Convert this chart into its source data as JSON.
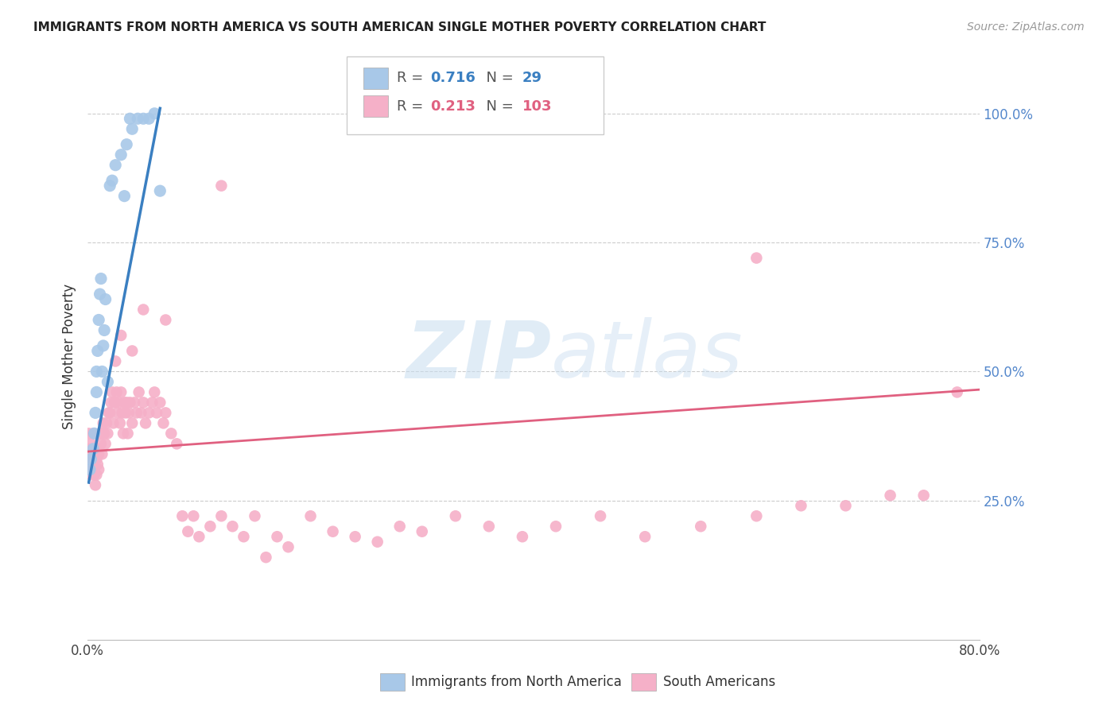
{
  "title": "IMMIGRANTS FROM NORTH AMERICA VS SOUTH AMERICAN SINGLE MOTHER POVERTY CORRELATION CHART",
  "source": "Source: ZipAtlas.com",
  "ylabel": "Single Mother Poverty",
  "legend_blue_R": "0.716",
  "legend_blue_N": "29",
  "legend_pink_R": "0.213",
  "legend_pink_N": "103",
  "legend_blue_label": "Immigrants from North America",
  "legend_pink_label": "South Americans",
  "watermark_zip": "ZIP",
  "watermark_atlas": "atlas",
  "blue_color": "#a8c8e8",
  "pink_color": "#f5b0c8",
  "blue_line_color": "#3a7fc1",
  "pink_line_color": "#e06080",
  "xlim": [
    0.0,
    0.8
  ],
  "ylim": [
    -0.02,
    1.08
  ],
  "blue_x": [
    0.002,
    0.003,
    0.005,
    0.006,
    0.007,
    0.008,
    0.008,
    0.009,
    0.01,
    0.011,
    0.012,
    0.013,
    0.014,
    0.015,
    0.016,
    0.018,
    0.02,
    0.022,
    0.025,
    0.03,
    0.033,
    0.035,
    0.038,
    0.04,
    0.045,
    0.05,
    0.055,
    0.06,
    0.065
  ],
  "blue_y": [
    0.31,
    0.33,
    0.35,
    0.38,
    0.42,
    0.46,
    0.5,
    0.54,
    0.6,
    0.65,
    0.68,
    0.5,
    0.55,
    0.58,
    0.64,
    0.48,
    0.86,
    0.87,
    0.9,
    0.92,
    0.84,
    0.94,
    0.99,
    0.97,
    0.99,
    0.99,
    0.99,
    1.0,
    0.85
  ],
  "blue_line_x": [
    0.001,
    0.065
  ],
  "blue_line_y": [
    0.285,
    1.01
  ],
  "pink_line_x": [
    0.0,
    0.8
  ],
  "pink_line_y": [
    0.345,
    0.465
  ],
  "pink_x": [
    0.001,
    0.001,
    0.002,
    0.002,
    0.003,
    0.003,
    0.004,
    0.004,
    0.005,
    0.005,
    0.006,
    0.006,
    0.007,
    0.007,
    0.008,
    0.008,
    0.009,
    0.009,
    0.01,
    0.01,
    0.011,
    0.012,
    0.013,
    0.013,
    0.014,
    0.015,
    0.016,
    0.017,
    0.018,
    0.019,
    0.02,
    0.021,
    0.022,
    0.023,
    0.024,
    0.025,
    0.026,
    0.027,
    0.028,
    0.029,
    0.03,
    0.031,
    0.032,
    0.033,
    0.034,
    0.035,
    0.036,
    0.037,
    0.038,
    0.04,
    0.042,
    0.044,
    0.046,
    0.048,
    0.05,
    0.052,
    0.055,
    0.058,
    0.06,
    0.062,
    0.065,
    0.068,
    0.07,
    0.075,
    0.08,
    0.085,
    0.09,
    0.095,
    0.1,
    0.11,
    0.12,
    0.13,
    0.14,
    0.15,
    0.16,
    0.17,
    0.18,
    0.2,
    0.22,
    0.24,
    0.26,
    0.28,
    0.3,
    0.33,
    0.36,
    0.39,
    0.42,
    0.46,
    0.5,
    0.55,
    0.6,
    0.64,
    0.68,
    0.72,
    0.75,
    0.78,
    0.12,
    0.6,
    0.07,
    0.05,
    0.04,
    0.03,
    0.025
  ],
  "pink_y": [
    0.34,
    0.38,
    0.35,
    0.32,
    0.36,
    0.3,
    0.34,
    0.32,
    0.35,
    0.38,
    0.33,
    0.3,
    0.34,
    0.28,
    0.33,
    0.3,
    0.32,
    0.35,
    0.34,
    0.31,
    0.38,
    0.36,
    0.38,
    0.34,
    0.4,
    0.38,
    0.36,
    0.4,
    0.38,
    0.42,
    0.42,
    0.44,
    0.46,
    0.4,
    0.44,
    0.44,
    0.46,
    0.42,
    0.44,
    0.4,
    0.46,
    0.42,
    0.38,
    0.44,
    0.42,
    0.44,
    0.38,
    0.42,
    0.44,
    0.4,
    0.44,
    0.42,
    0.46,
    0.42,
    0.44,
    0.4,
    0.42,
    0.44,
    0.46,
    0.42,
    0.44,
    0.4,
    0.42,
    0.38,
    0.36,
    0.22,
    0.19,
    0.22,
    0.18,
    0.2,
    0.22,
    0.2,
    0.18,
    0.22,
    0.14,
    0.18,
    0.16,
    0.22,
    0.19,
    0.18,
    0.17,
    0.2,
    0.19,
    0.22,
    0.2,
    0.18,
    0.2,
    0.22,
    0.18,
    0.2,
    0.22,
    0.24,
    0.24,
    0.26,
    0.26,
    0.46,
    0.86,
    0.72,
    0.6,
    0.62,
    0.54,
    0.57,
    0.52
  ]
}
